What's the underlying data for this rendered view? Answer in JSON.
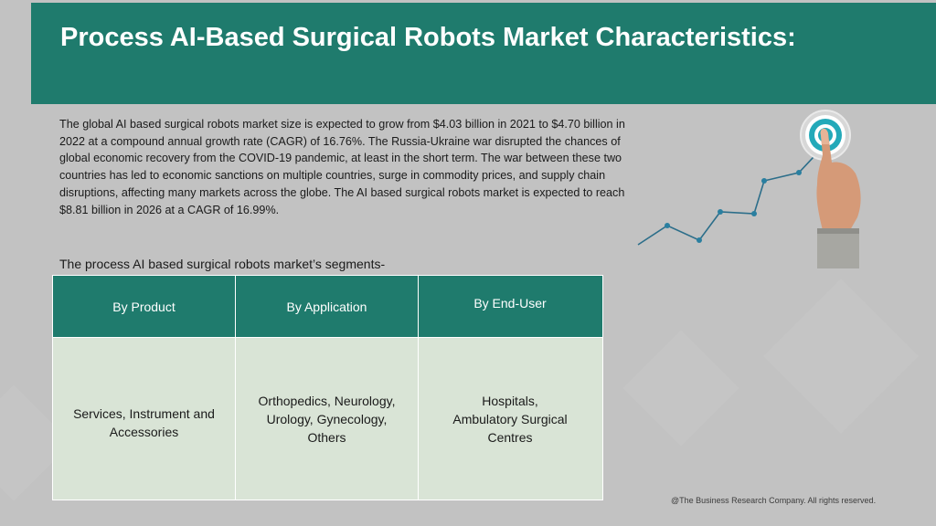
{
  "title": "Process AI-Based Surgical Robots Market Characteristics:",
  "intro": "The global AI based surgical robots market size is expected to grow from $4.03 billion in 2021 to $4.70 billion in 2022 at a compound annual growth rate (CAGR) of 16.76%. The Russia-Ukraine war disrupted the chances of global economic recovery from the COVID-19 pandemic, at least in the short term. The war between these two countries has led to economic sanctions on multiple countries, surge in commodity prices, and supply chain disruptions, affecting many markets across the globe. The AI based surgical robots market is expected to reach $8.81 billion in 2026 at a CAGR of 16.99%.",
  "segments_heading": "The process AI based surgical robots market’s segments-",
  "table": {
    "headers": [
      "By Product",
      "By Application",
      "By End-User"
    ],
    "cells": [
      "Services, Instrument and Accessories",
      "Orthopedics, Neurology, Urology, Gynecology, Others",
      "Hospitals, Ambulatory Surgical Centres"
    ]
  },
  "footer": "@The Business Research Company. All rights reserved.",
  "colors": {
    "header": "#1f7b6d",
    "table_body": "#d9e4d6",
    "background": "#c2c2c2"
  },
  "illustration": {
    "icon": "growth-chart-target-icon"
  }
}
